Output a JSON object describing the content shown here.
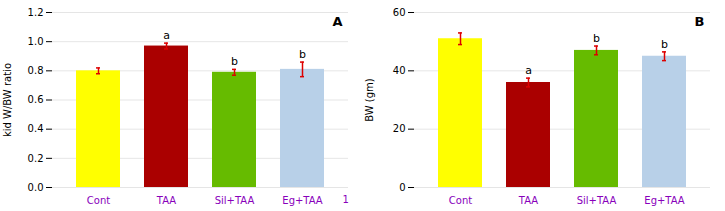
{
  "chart_data": [
    {
      "type": "bar",
      "title": "A",
      "categories": [
        "Cont",
        "TAA",
        "Sil+TAA",
        "Eg+TAA"
      ],
      "values": [
        0.8,
        0.97,
        0.79,
        0.81
      ],
      "errors": [
        0.02,
        0.02,
        0.02,
        0.05
      ],
      "error_color": "#DD0000",
      "colors": [
        "#FFFF00",
        "#AA0000",
        "#66BB00",
        "#B8D0E8"
      ],
      "sig_labels": [
        null,
        "a",
        "b",
        "b"
      ],
      "annotations": [
        "1"
      ],
      "ylabel": "kid W/BW ratio",
      "ylim": [
        0,
        1.2
      ],
      "yticks": [
        {
          "value": 0,
          "label": "0.0"
        },
        0.2,
        0.4,
        0.6,
        0.8,
        {
          "value": 1.0,
          "label": "1.0"
        },
        1.2
      ],
      "tick_label_color": "#8800BB",
      "grid": true
    },
    {
      "type": "bar",
      "title": "B",
      "categories": [
        "Cont",
        "TAA",
        "Sil+TAA",
        "Eg+TAA"
      ],
      "values": [
        51,
        36,
        47,
        45
      ],
      "errors": [
        2.0,
        1.5,
        1.5,
        1.5
      ],
      "error_color": "#DD0000",
      "colors": [
        "#FFFF00",
        "#AA0000",
        "#66BB00",
        "#B8D0E8"
      ],
      "sig_labels": [
        null,
        "a",
        "b",
        "b"
      ],
      "ylabel": "BW (gm)",
      "ylim": [
        0,
        60
      ],
      "yticks": [
        0,
        20,
        40,
        60
      ],
      "tick_label_color": "#8800BB",
      "grid": true
    }
  ]
}
